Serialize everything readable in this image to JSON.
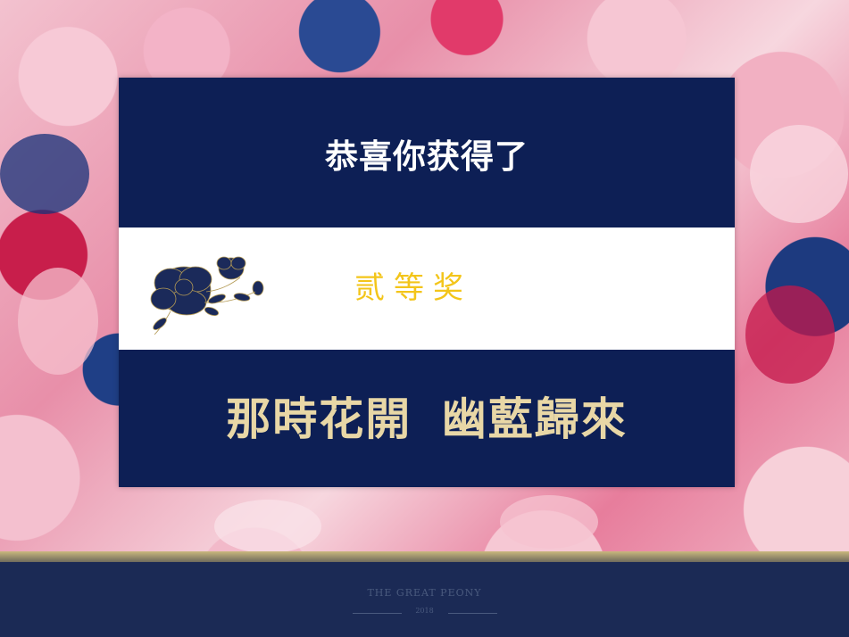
{
  "card": {
    "headline": "恭喜你获得了",
    "prize": "贰等奖",
    "slogan": "那時花開 幽藍歸來"
  },
  "footer": {
    "brand": "THE GREAT PEONY",
    "sub": "2018"
  },
  "colors": {
    "card_navy": "#0d1f55",
    "prize_gold": "#f3c51a",
    "slogan_gold": "#e8d7a6",
    "footer_navy": "#1b2a55"
  },
  "icons": {
    "peony": "peony-flower-icon"
  }
}
